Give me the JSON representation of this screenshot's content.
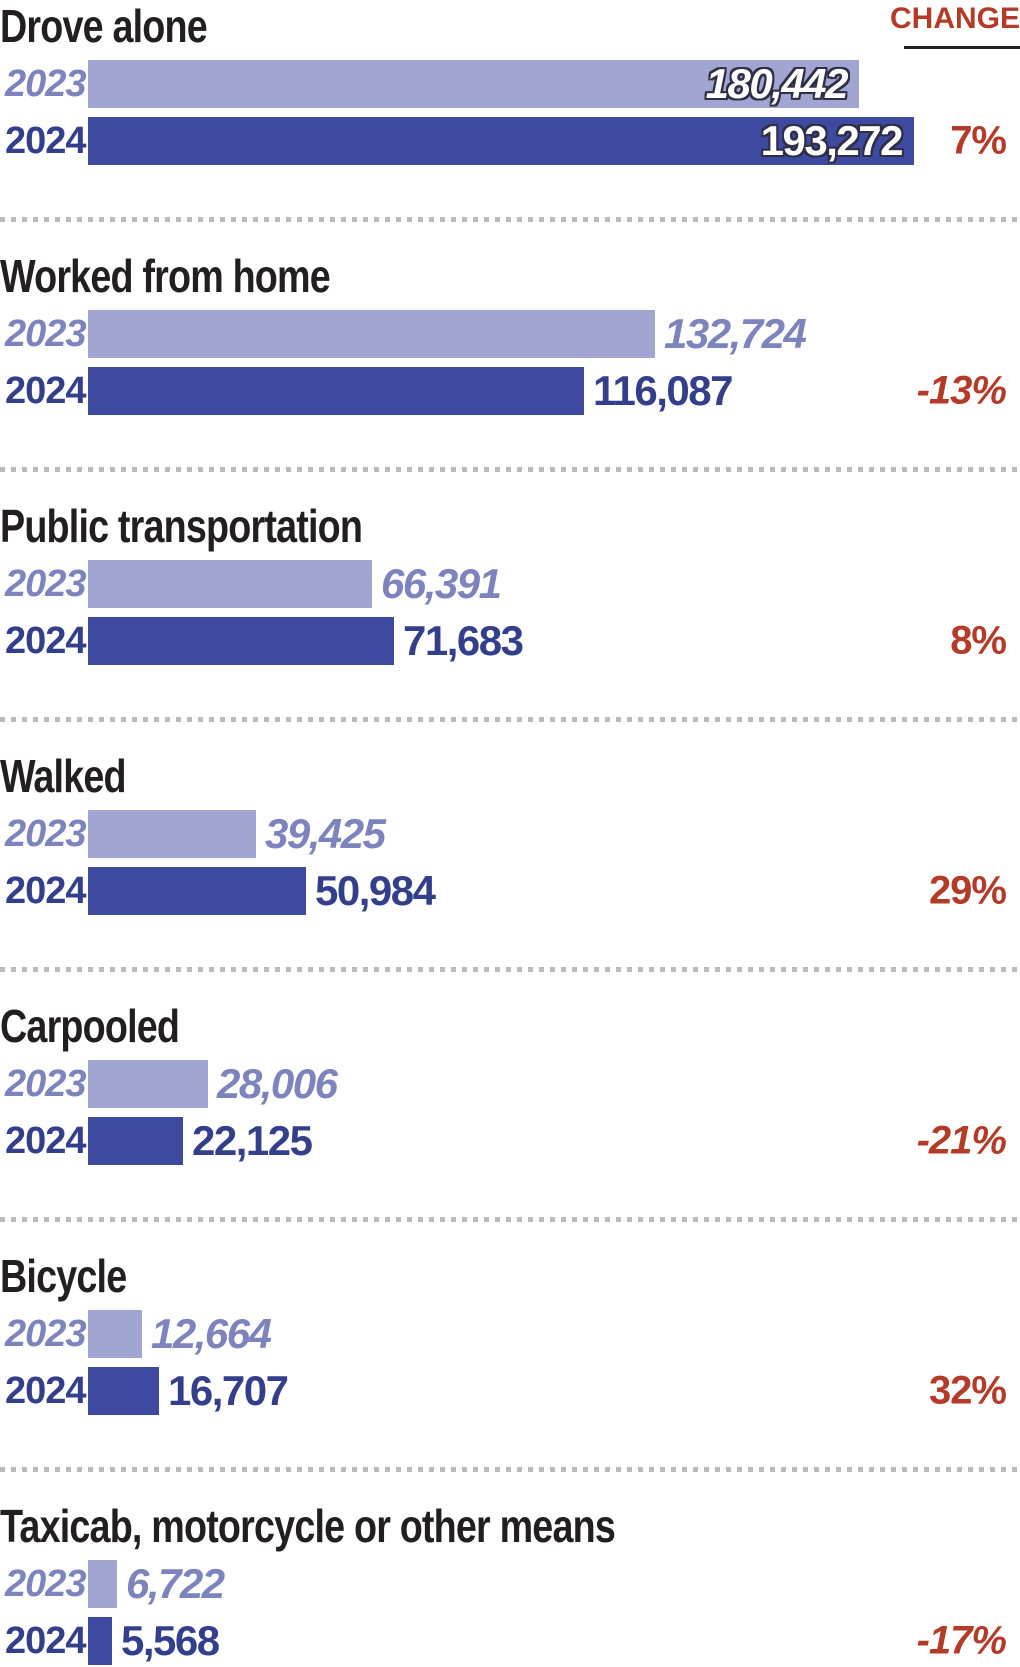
{
  "change_header": {
    "label": "CHANGE"
  },
  "chart_data": {
    "type": "bar",
    "orientation": "horizontal",
    "series_labels": [
      "2023",
      "2024"
    ],
    "value_axis_max": 193272,
    "legend_position": "none",
    "grid": false,
    "rows": [
      {
        "label": "Drove alone",
        "y2023": {
          "value": 180442,
          "display": "180,442"
        },
        "y2024": {
          "value": 193272,
          "display": "193,272"
        },
        "change": "7%",
        "change_negative": false,
        "values_inside_bars": true
      },
      {
        "label": "Worked from home",
        "y2023": {
          "value": 132724,
          "display": "132,724"
        },
        "y2024": {
          "value": 116087,
          "display": "116,087"
        },
        "change": "-13%",
        "change_negative": true,
        "values_inside_bars": false
      },
      {
        "label": "Public transportation",
        "y2023": {
          "value": 66391,
          "display": "66,391"
        },
        "y2024": {
          "value": 71683,
          "display": "71,683"
        },
        "change": "8%",
        "change_negative": false,
        "values_inside_bars": false
      },
      {
        "label": "Walked",
        "y2023": {
          "value": 39425,
          "display": "39,425"
        },
        "y2024": {
          "value": 50984,
          "display": "50,984"
        },
        "change": "29%",
        "change_negative": false,
        "values_inside_bars": false
      },
      {
        "label": "Carpooled",
        "y2023": {
          "value": 28006,
          "display": "28,006"
        },
        "y2024": {
          "value": 22125,
          "display": "22,125"
        },
        "change": "-21%",
        "change_negative": true,
        "values_inside_bars": false
      },
      {
        "label": "Bicycle",
        "y2023": {
          "value": 12664,
          "display": "12,664"
        },
        "y2024": {
          "value": 16707,
          "display": "16,707"
        },
        "change": "32%",
        "change_negative": false,
        "values_inside_bars": false
      },
      {
        "label": "Taxicab, motorcycle or other means",
        "y2023": {
          "value": 6722,
          "display": "6,722"
        },
        "y2024": {
          "value": 5568,
          "display": "5,568"
        },
        "change": "-17%",
        "change_negative": true,
        "values_inside_bars": false
      }
    ],
    "colors": {
      "bar_2023": "#a0a5d2",
      "bar_2024": "#3e4a9f",
      "text_2023": "#7d84bd",
      "text_2024": "#333f8b",
      "change_red": "#b33b28",
      "title_text": "#231f20",
      "separator": "#bbbbbb"
    }
  }
}
